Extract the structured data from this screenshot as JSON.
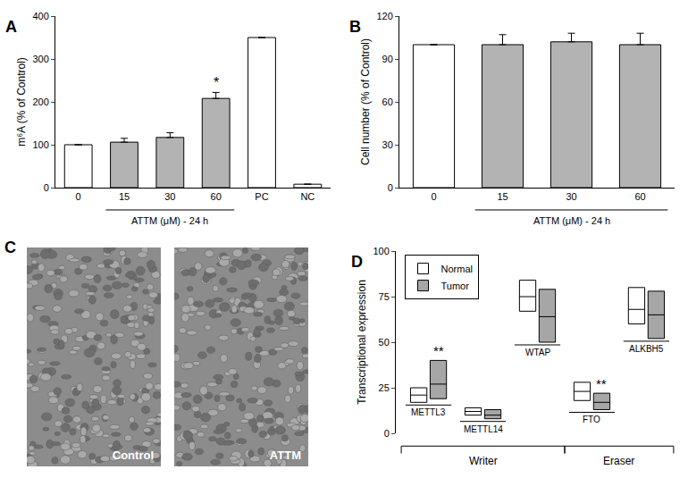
{
  "chart_data": [
    {
      "panel_label": "A",
      "type": "bar",
      "categories": [
        "0",
        "15",
        "30",
        "60",
        "PC",
        "NC"
      ],
      "values": [
        100,
        106,
        117,
        208,
        350,
        8
      ],
      "errors": [
        0,
        9,
        11,
        14,
        0,
        0
      ],
      "colors": [
        "#ffffff",
        "#b3b3b3",
        "#b3b3b3",
        "#b3b3b3",
        "#ffffff",
        "#ffffff"
      ],
      "ylabel": "m⁶A (% of Control)",
      "ylim": [
        0,
        400
      ],
      "yticks": [
        0,
        100,
        200,
        300,
        400
      ],
      "annotations": [
        {
          "category": "60",
          "text": "*"
        }
      ],
      "group_label": {
        "text": "ATTM (μM) - 24 h",
        "categories": [
          "15",
          "30",
          "60"
        ]
      }
    },
    {
      "panel_label": "B",
      "type": "bar",
      "categories": [
        "0",
        "15",
        "30",
        "60"
      ],
      "values": [
        100,
        100,
        102,
        100
      ],
      "errors": [
        0,
        7,
        6,
        8
      ],
      "colors": [
        "#ffffff",
        "#b3b3b3",
        "#b3b3b3",
        "#b3b3b3"
      ],
      "ylabel": "Cell number (% of Control)",
      "ylim": [
        0,
        120
      ],
      "yticks": [
        0,
        30,
        60,
        90,
        120
      ],
      "group_label": {
        "text": "ATTM (μM) - 24 h",
        "categories": [
          "15",
          "30",
          "60"
        ]
      }
    },
    {
      "panel_label": "D",
      "type": "box",
      "categories": [
        "METTL3",
        "METTL14",
        "WTAP",
        "FTO",
        "ALKBH5"
      ],
      "series": [
        {
          "name": "Normal",
          "color": "#ffffff",
          "low": [
            17,
            10,
            67,
            18,
            60
          ],
          "median": [
            21,
            12,
            75,
            23,
            68
          ],
          "high": [
            25,
            14,
            84,
            28,
            80
          ]
        },
        {
          "name": "Tumor",
          "color": "#a6a6a6",
          "low": [
            19,
            8,
            50,
            13,
            52
          ],
          "median": [
            27,
            10,
            64,
            17,
            65
          ],
          "high": [
            40,
            13,
            79,
            22,
            78
          ]
        }
      ],
      "ylabel": "Transcriptional expression",
      "ylim": [
        0,
        100
      ],
      "yticks": [
        0,
        25,
        50,
        75,
        100
      ],
      "legend": "upper left",
      "annotations": [
        {
          "category": "METTL3",
          "series": "Tumor",
          "text": "**"
        },
        {
          "category": "FTO",
          "series": "Tumor",
          "text": "**"
        }
      ],
      "groups": [
        {
          "text": "Writer",
          "categories": [
            "METTL3",
            "METTL14",
            "WTAP"
          ]
        },
        {
          "text": "Eraser",
          "categories": [
            "FTO",
            "ALKBH5"
          ]
        }
      ]
    }
  ],
  "panel_c": {
    "panel_label": "C",
    "images": [
      {
        "label": "Control"
      },
      {
        "label": "ATTM"
      }
    ]
  }
}
